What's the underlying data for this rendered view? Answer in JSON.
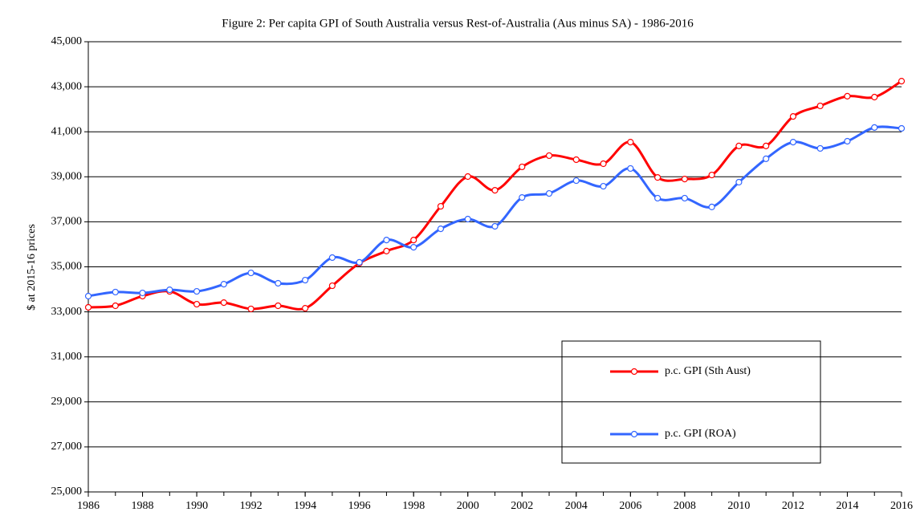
{
  "chart_data": {
    "type": "line",
    "title": "Figure 2: Per capita GPI of South Australia versus Rest-of-Australia (Aus minus SA)  -  1986-2016",
    "y_label": "$ at 2015-16 prices",
    "x": [
      1986,
      1987,
      1988,
      1989,
      1990,
      1991,
      1992,
      1993,
      1994,
      1995,
      1996,
      1997,
      1998,
      1999,
      2000,
      2001,
      2002,
      2003,
      2004,
      2005,
      2006,
      2007,
      2008,
      2009,
      2010,
      2011,
      2012,
      2013,
      2014,
      2015,
      2016
    ],
    "series": [
      {
        "name": "p.c. GPI (Sth Aust)",
        "color": "#ff0000",
        "values": [
          33200,
          33270,
          33700,
          33910,
          33340,
          33410,
          33130,
          33270,
          33160,
          34160,
          35160,
          35700,
          36190,
          37690,
          39010,
          38400,
          39440,
          39940,
          39760,
          39580,
          40540,
          38970,
          38900,
          39080,
          40370,
          40370,
          41680,
          42150,
          42580,
          42540,
          43250
        ]
      },
      {
        "name": "p.c. GPI (ROA)",
        "color": "#3366ff",
        "values": [
          33700,
          33880,
          33840,
          33980,
          33910,
          34230,
          34730,
          34270,
          34410,
          35410,
          35200,
          36190,
          35870,
          36690,
          37120,
          36800,
          38080,
          38260,
          38830,
          38580,
          39370,
          38050,
          38050,
          37660,
          38760,
          39800,
          40540,
          40260,
          40580,
          41190,
          41150
        ]
      }
    ],
    "xlim": [
      1986,
      2016
    ],
    "xticks": [
      1986,
      1988,
      1990,
      1992,
      1994,
      1996,
      1998,
      2000,
      2002,
      2004,
      2006,
      2008,
      2010,
      2012,
      2014,
      2016
    ],
    "ylim": [
      25000,
      45000
    ],
    "yticks": [
      {
        "value": 25000,
        "label": "25,000"
      },
      {
        "value": 27000,
        "label": "27,000"
      },
      {
        "value": 29000,
        "label": "29,000"
      },
      {
        "value": 31000,
        "label": "31,000"
      },
      {
        "value": 33000,
        "label": "33,000"
      },
      {
        "value": 35000,
        "label": "35,000"
      },
      {
        "value": 37000,
        "label": "37,000"
      },
      {
        "value": 39000,
        "label": "39,000"
      },
      {
        "value": 41000,
        "label": "41,000"
      },
      {
        "value": 43000,
        "label": "43,000"
      },
      {
        "value": 45000,
        "label": "45,000"
      }
    ],
    "grid": true,
    "smooth": true
  }
}
